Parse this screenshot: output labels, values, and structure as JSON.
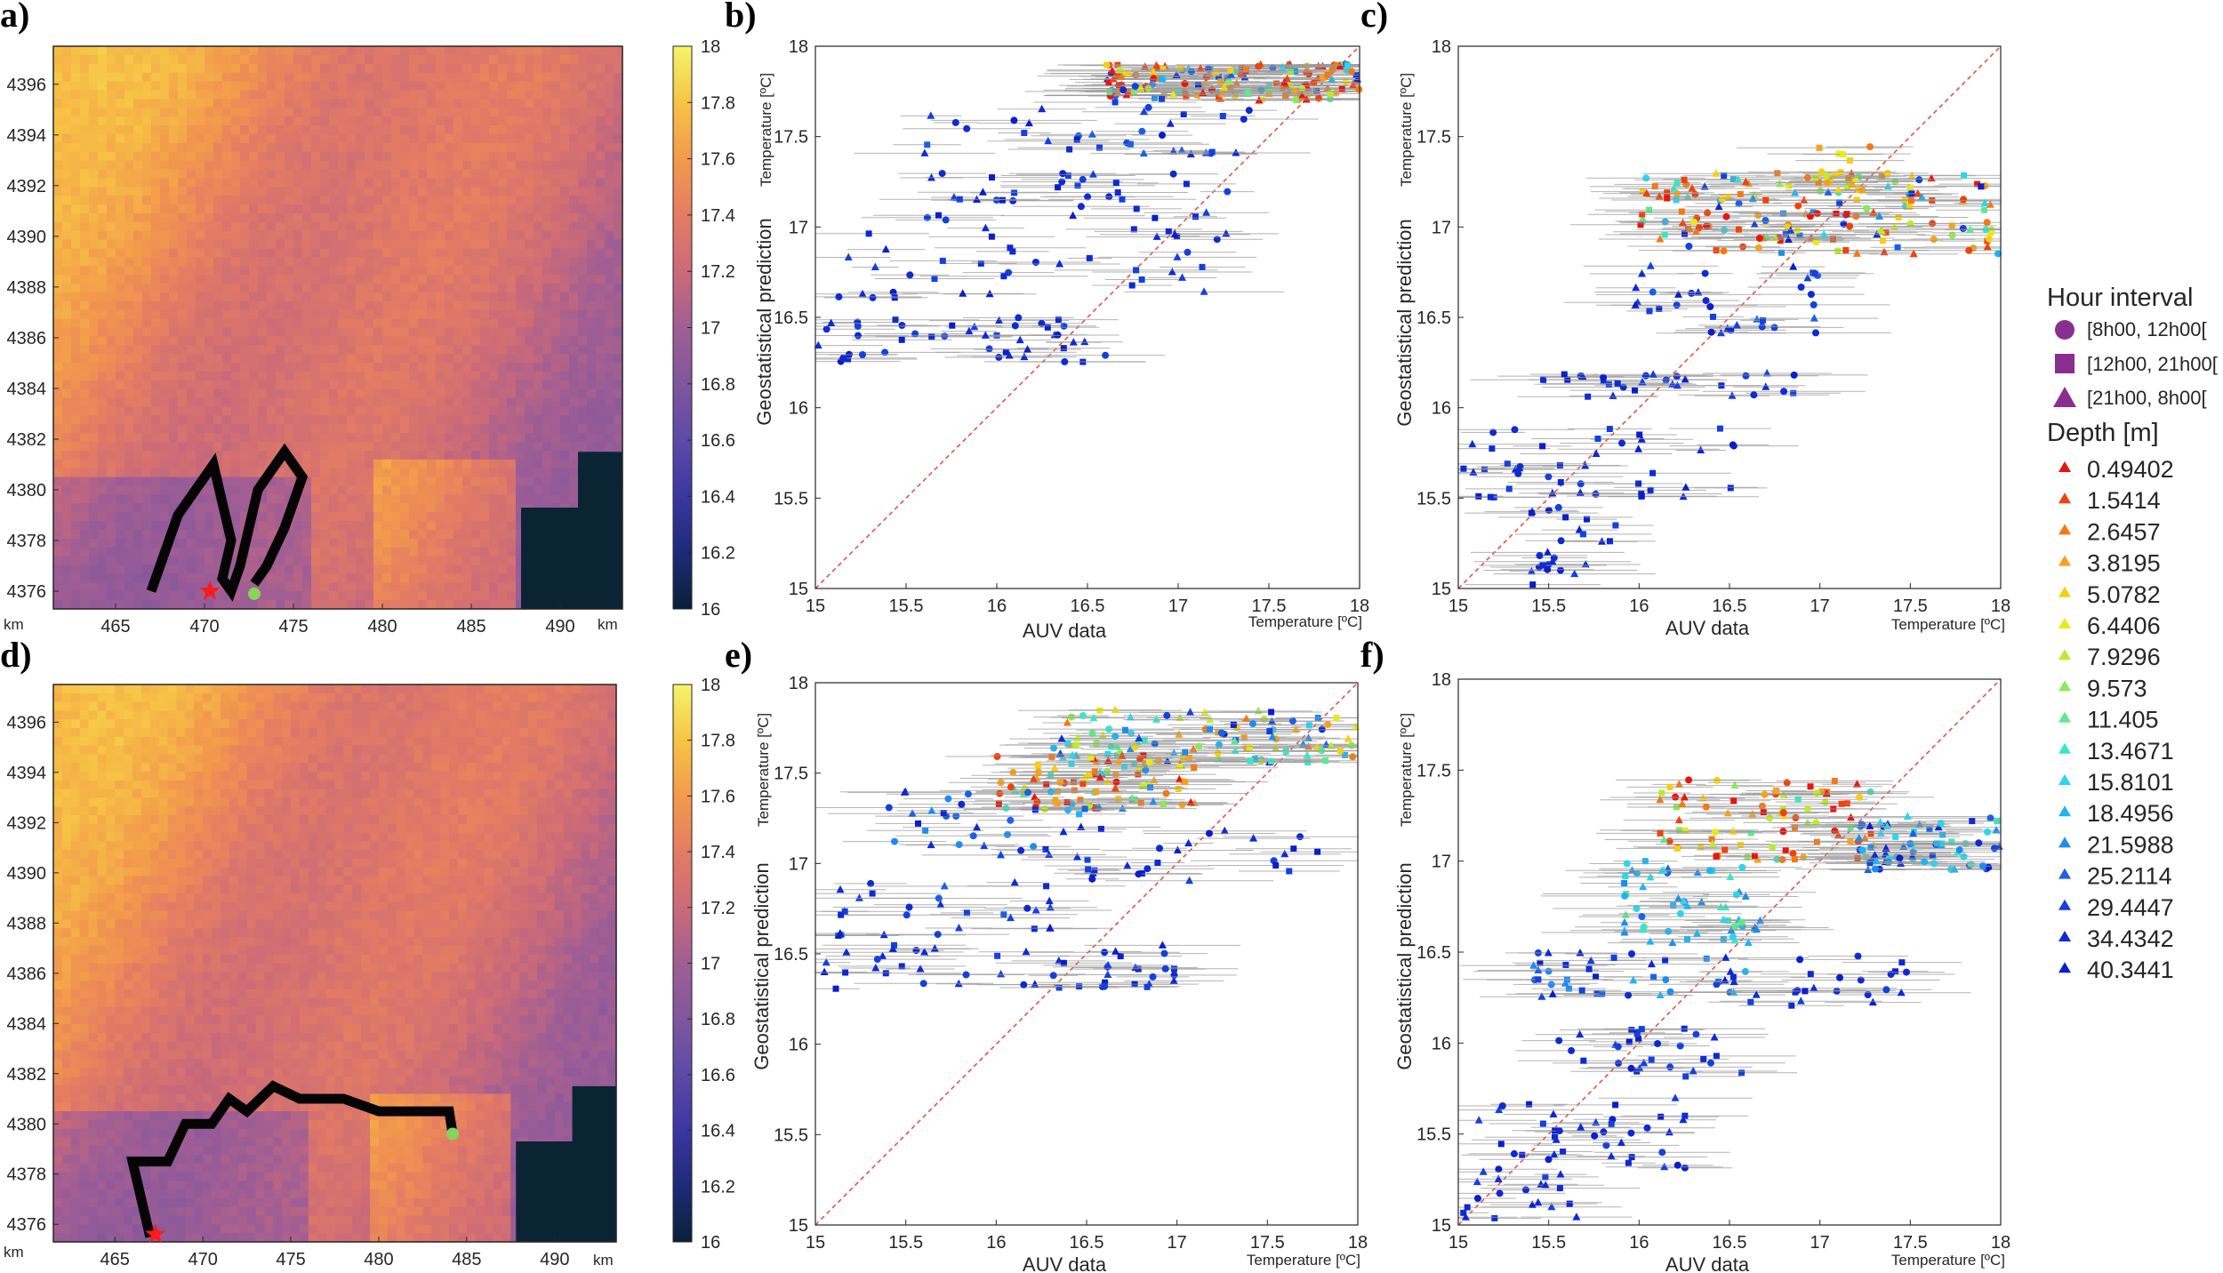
{
  "colors": {
    "frame": "#262626",
    "diagonal": "#e8473a",
    "errorbar": "#9a9a9a",
    "land": "#0a2433",
    "track": "#050505",
    "start_marker": "#ff1a1a",
    "end_marker": "#86d45a",
    "legend_marker": "#8a2d91"
  },
  "maps": [
    {
      "panel_label": "a)",
      "colorbar_ticks": [
        "18",
        "17.8",
        "17.6",
        "17.4",
        "17.2",
        "17",
        "16.8",
        "16.6",
        "16.4",
        "16.2",
        "16"
      ],
      "y_ticks": [
        "4396",
        "4394",
        "4392",
        "4390",
        "4388",
        "4386",
        "4384",
        "4382",
        "4380",
        "4378",
        "4376"
      ],
      "x_ticks": [
        "465",
        "470",
        "475",
        "480",
        "485",
        "490"
      ],
      "x_unit": "km",
      "y_unit": "km"
    },
    {
      "panel_label": "d)",
      "colorbar_ticks": [
        "18",
        "17.8",
        "17.6",
        "17.4",
        "17.2",
        "17",
        "16.8",
        "16.6",
        "16.4",
        "16.2",
        "16"
      ],
      "y_ticks": [
        "4396",
        "4394",
        "4392",
        "4390",
        "4388",
        "4386",
        "4384",
        "4382",
        "4380",
        "4378",
        "4376"
      ],
      "x_ticks": [
        "465",
        "470",
        "475",
        "480",
        "485",
        "490"
      ],
      "x_unit": "km",
      "y_unit": "km"
    }
  ],
  "chart_data": [
    {
      "type": "heatmap",
      "panel": "a)",
      "colorbar_range": [
        16,
        18
      ],
      "x_range_km": [
        461.5,
        493.5
      ],
      "y_range_km": [
        4375.3,
        4397.5
      ],
      "track": [
        [
          467.0,
          4376.0
        ],
        [
          468.5,
          4379.0
        ],
        [
          469.5,
          4380.0
        ],
        [
          470.5,
          4381.0
        ],
        [
          471.5,
          4378.0
        ],
        [
          471.0,
          4376.5
        ],
        [
          471.5,
          4376.0
        ],
        [
          472.0,
          4377.0
        ],
        [
          473.0,
          4380.0
        ],
        [
          474.5,
          4381.5
        ],
        [
          475.5,
          4380.5
        ],
        [
          474.5,
          4378.5
        ],
        [
          473.5,
          4377.0
        ],
        [
          472.8,
          4376.3
        ]
      ],
      "start_marker": [
        470.3,
        4376.0
      ],
      "end_marker": [
        472.8,
        4375.9
      ]
    },
    {
      "type": "scatter",
      "panel": "b)",
      "xlabel": "AUV data",
      "x_unit_label": "Temperature [ºC]",
      "ylabel": "Geostatistical prediction",
      "y_unit_label": "Temperature [ºC]",
      "xlim": [
        15,
        18
      ],
      "ylim": [
        15,
        18
      ],
      "x_ticks": [
        "15",
        "15.5",
        "16",
        "16.5",
        "17",
        "17.5",
        "18"
      ],
      "y_ticks": [
        "15",
        "15.5",
        "16",
        "16.5",
        "17",
        "17.5",
        "18"
      ],
      "clusters": [
        {
          "x": [
            16.6,
            18.0
          ],
          "y": [
            17.7,
            17.9
          ],
          "n": 160,
          "depth_range": [
            0.49,
            40.34
          ]
        },
        {
          "x": [
            15.6,
            17.4
          ],
          "y": [
            17.4,
            17.7
          ],
          "n": 35,
          "depth_range": [
            25.2,
            40.34
          ]
        },
        {
          "x": [
            15.6,
            17.3
          ],
          "y": [
            17.0,
            17.3
          ],
          "n": 35,
          "depth_range": [
            29.4,
            40.34
          ]
        },
        {
          "x": [
            15.0,
            17.3
          ],
          "y": [
            16.6,
            17.0
          ],
          "n": 40,
          "depth_range": [
            29.4,
            40.34
          ]
        },
        {
          "x": [
            15.0,
            16.6
          ],
          "y": [
            16.25,
            16.5
          ],
          "n": 45,
          "depth_range": [
            29.4,
            40.34
          ]
        }
      ]
    },
    {
      "type": "scatter",
      "panel": "c)",
      "xlabel": "AUV data",
      "x_unit_label": "Temperature [ºC]",
      "ylabel": "Geostatistical prediction",
      "y_unit_label": "Temperature [ºC]",
      "xlim": [
        15,
        18
      ],
      "ylim": [
        15,
        18
      ],
      "x_ticks": [
        "15",
        "15.5",
        "16",
        "16.5",
        "17",
        "17.5",
        "18"
      ],
      "y_ticks": [
        "15",
        "15.5",
        "16",
        "16.5",
        "17",
        "17.5",
        "18"
      ],
      "clusters": [
        {
          "x": [
            16.0,
            18.0
          ],
          "y": [
            16.85,
            17.3
          ],
          "n": 170,
          "depth_range": [
            0.49,
            40.34
          ]
        },
        {
          "x": [
            16.9,
            17.3
          ],
          "y": [
            17.2,
            17.45
          ],
          "n": 20,
          "depth_range": [
            2.6,
            7.9
          ]
        },
        {
          "x": [
            15.8,
            17.0
          ],
          "y": [
            16.4,
            16.8
          ],
          "n": 35,
          "depth_range": [
            25.2,
            40.34
          ]
        },
        {
          "x": [
            15.4,
            16.9
          ],
          "y": [
            16.05,
            16.2
          ],
          "n": 30,
          "depth_range": [
            29.4,
            40.34
          ]
        },
        {
          "x": [
            15.0,
            16.6
          ],
          "y": [
            15.5,
            15.9
          ],
          "n": 45,
          "depth_range": [
            29.4,
            40.34
          ]
        },
        {
          "x": [
            15.4,
            15.9
          ],
          "y": [
            15.0,
            15.45
          ],
          "n": 25,
          "depth_range": [
            29.4,
            40.34
          ]
        }
      ]
    },
    {
      "type": "heatmap",
      "panel": "d)",
      "colorbar_range": [
        16,
        18
      ],
      "x_range_km": [
        461.5,
        493.5
      ],
      "y_range_km": [
        4375.3,
        4397.5
      ],
      "track": [
        [
          467.0,
          4375.5
        ],
        [
          466.5,
          4377.0
        ],
        [
          466.0,
          4378.5
        ],
        [
          468.0,
          4378.5
        ],
        [
          469.0,
          4380.0
        ],
        [
          470.5,
          4380.0
        ],
        [
          471.5,
          4381.0
        ],
        [
          472.5,
          4380.5
        ],
        [
          474.0,
          4381.5
        ],
        [
          475.5,
          4381.0
        ],
        [
          478.0,
          4381.0
        ],
        [
          480.0,
          4380.5
        ],
        [
          484.0,
          4380.5
        ],
        [
          484.2,
          4379.6
        ]
      ],
      "start_marker": [
        467.3,
        4375.6
      ],
      "end_marker": [
        484.2,
        4379.6
      ]
    },
    {
      "type": "scatter",
      "panel": "e)",
      "xlabel": "AUV data",
      "x_unit_label": "Temperature [ºC]",
      "ylabel": "Geostatistical prediction",
      "y_unit_label": "Temperature [ºC]",
      "xlim": [
        15,
        18
      ],
      "ylim": [
        15,
        18
      ],
      "x_ticks": [
        "15",
        "15.5",
        "16",
        "16.5",
        "17",
        "17.5",
        "18"
      ],
      "y_ticks": [
        "15",
        "15.5",
        "16",
        "16.5",
        "17",
        "17.5",
        "18"
      ],
      "clusters": [
        {
          "x": [
            16.3,
            18.0
          ],
          "y": [
            17.55,
            17.85
          ],
          "n": 110,
          "depth_range": [
            2.6,
            40.34
          ]
        },
        {
          "x": [
            16.0,
            17.1
          ],
          "y": [
            17.3,
            17.6
          ],
          "n": 90,
          "depth_range": [
            0.49,
            21.6
          ]
        },
        {
          "x": [
            15.4,
            16.6
          ],
          "y": [
            17.0,
            17.4
          ],
          "n": 30,
          "depth_range": [
            18.5,
            40.34
          ]
        },
        {
          "x": [
            15.1,
            16.4
          ],
          "y": [
            16.6,
            16.9
          ],
          "n": 30,
          "depth_range": [
            25.2,
            40.34
          ]
        },
        {
          "x": [
            16.0,
            17.8
          ],
          "y": [
            16.9,
            17.2
          ],
          "n": 30,
          "depth_range": [
            29.4,
            40.34
          ]
        },
        {
          "x": [
            15.0,
            17.0
          ],
          "y": [
            16.3,
            16.55
          ],
          "n": 50,
          "depth_range": [
            29.4,
            40.34
          ]
        }
      ]
    },
    {
      "type": "scatter",
      "panel": "f)",
      "xlabel": "AUV data",
      "x_unit_label": "Temperature [ºC]",
      "ylabel": "Geostatistical prediction",
      "y_unit_label": "Temperature [ºC]",
      "xlim": [
        15,
        18
      ],
      "ylim": [
        15,
        18
      ],
      "x_ticks": [
        "15",
        "15.5",
        "16",
        "16.5",
        "17",
        "17.5",
        "18"
      ],
      "y_ticks": [
        "15",
        "15.5",
        "16",
        "16.5",
        "17",
        "17.5",
        "18"
      ],
      "clusters": [
        {
          "x": [
            16.1,
            17.3
          ],
          "y": [
            17.0,
            17.45
          ],
          "n": 90,
          "depth_range": [
            0.49,
            13.5
          ]
        },
        {
          "x": [
            17.2,
            18.0
          ],
          "y": [
            16.95,
            17.25
          ],
          "n": 70,
          "depth_range": [
            13.5,
            40.34
          ]
        },
        {
          "x": [
            15.9,
            16.7
          ],
          "y": [
            16.55,
            17.0
          ],
          "n": 60,
          "depth_range": [
            11.4,
            25.2
          ]
        },
        {
          "x": [
            15.4,
            16.6
          ],
          "y": [
            16.25,
            16.5
          ],
          "n": 40,
          "depth_range": [
            18.5,
            40.34
          ]
        },
        {
          "x": [
            16.4,
            17.5
          ],
          "y": [
            16.2,
            16.5
          ],
          "n": 25,
          "depth_range": [
            29.4,
            40.34
          ]
        },
        {
          "x": [
            15.5,
            16.6
          ],
          "y": [
            15.8,
            16.1
          ],
          "n": 30,
          "depth_range": [
            29.4,
            40.34
          ]
        },
        {
          "x": [
            15.0,
            16.3
          ],
          "y": [
            15.3,
            15.7
          ],
          "n": 40,
          "depth_range": [
            29.4,
            40.34
          ]
        },
        {
          "x": [
            15.0,
            15.7
          ],
          "y": [
            15.0,
            15.3
          ],
          "n": 20,
          "depth_range": [
            29.4,
            40.34
          ]
        }
      ]
    }
  ],
  "legend": {
    "hour_title": "Hour interval",
    "hour_items": [
      {
        "label": "[8h00, 12h00[",
        "marker": "circle"
      },
      {
        "label": "[12h00, 21h00[",
        "marker": "square"
      },
      {
        "label": "[21h00, 8h00[",
        "marker": "triangle"
      }
    ],
    "depth_title": "Depth [m]",
    "depth_items": [
      {
        "label": "0.49402",
        "color": "#e8150f"
      },
      {
        "label": "1.5414",
        "color": "#f0420c"
      },
      {
        "label": "2.6457",
        "color": "#f57815"
      },
      {
        "label": "3.8195",
        "color": "#f7a21c"
      },
      {
        "label": "5.0782",
        "color": "#f7cf12"
      },
      {
        "label": "6.4406",
        "color": "#e6ea1a"
      },
      {
        "label": "7.9296",
        "color": "#bdea2c"
      },
      {
        "label": "9.573",
        "color": "#8ee85a"
      },
      {
        "label": "11.405",
        "color": "#5de88f"
      },
      {
        "label": "13.4671",
        "color": "#3ce6c4"
      },
      {
        "label": "15.8101",
        "color": "#2bd6ee"
      },
      {
        "label": "18.4956",
        "color": "#1fb4f2"
      },
      {
        "label": "21.5988",
        "color": "#1d8cf0"
      },
      {
        "label": "25.2114",
        "color": "#1a60e8"
      },
      {
        "label": "29.4447",
        "color": "#1440dd"
      },
      {
        "label": "34.4342",
        "color": "#0f2ad2"
      },
      {
        "label": "40.3441",
        "color": "#0b1ec9"
      }
    ]
  }
}
